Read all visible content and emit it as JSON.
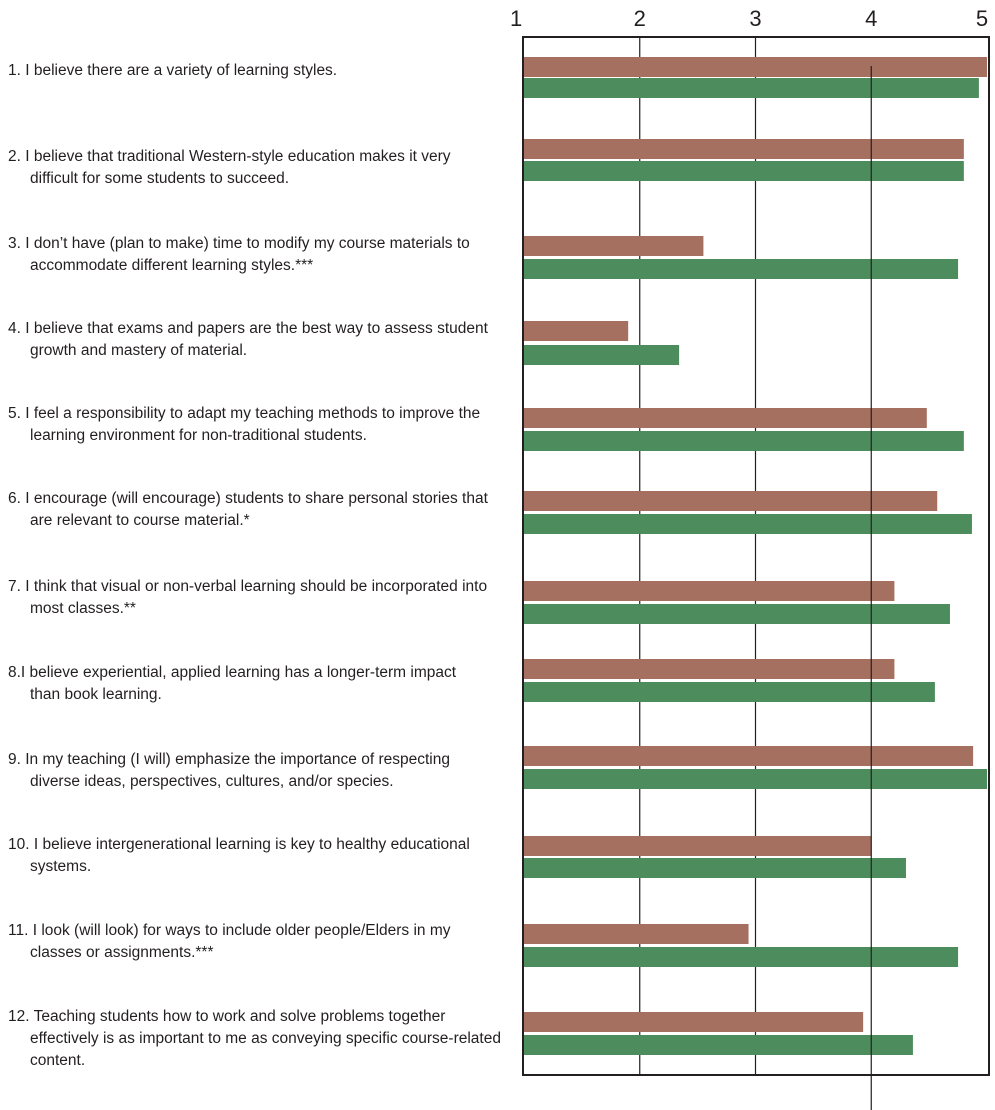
{
  "colors": {
    "series_1": "#a57060",
    "series_2": "#4d8c5c",
    "axis": "#231f20"
  },
  "chart_data": {
    "type": "bar",
    "orientation": "horizontal",
    "xlim": [
      1,
      5
    ],
    "x_ticks": [
      "1",
      "2",
      "3",
      "4",
      "5"
    ],
    "reference_line": 4.0,
    "grid": true,
    "legend": "none",
    "categories": [
      [
        "1. I believe there are a variety of learning styles."
      ],
      [
        "2. I believe that traditional Western-style education makes it very",
        "difficult for some students to succeed."
      ],
      [
        "3. I don’t have (plan to make) time to modify my course materials to",
        "accommodate different learning styles.***"
      ],
      [
        "4. I believe that exams and papers are the best way to assess student",
        "growth and mastery of material."
      ],
      [
        "5. I feel a responsibility to adapt my teaching methods to improve the",
        "learning environment for non-traditional students."
      ],
      [
        "6. I encourage (will encourage) students to share personal stories that",
        "are relevant to course material.*"
      ],
      [
        "7. I think that visual or non-verbal learning should be incorporated into",
        "most classes.**"
      ],
      [
        "8.I believe experiential, applied learning has  a longer-term impact",
        "than book learning."
      ],
      [
        "9. In my teaching (I will) emphasize the importance of respecting",
        "diverse ideas, perspectives, cultures, and/or species."
      ],
      [
        "10. I believe intergenerational learning is key to healthy educational",
        "systems."
      ],
      [
        "11. I look (will look) for ways to include older people/Elders in my",
        "classes or assignments.***"
      ],
      [
        "12. Teaching students how to work and solve problems together",
        "effectively is as important to me as conveying specific course-related",
        "content."
      ]
    ],
    "series": [
      {
        "color": "#a57060",
        "values": [
          5.0,
          4.8,
          2.55,
          1.9,
          4.48,
          4.57,
          4.2,
          4.2,
          4.88,
          4.0,
          2.94,
          3.93
        ]
      },
      {
        "color": "#4d8c5c",
        "values": [
          4.93,
          4.8,
          4.75,
          2.34,
          4.8,
          4.87,
          4.68,
          4.55,
          5.0,
          4.3,
          4.75,
          4.36
        ]
      }
    ]
  }
}
